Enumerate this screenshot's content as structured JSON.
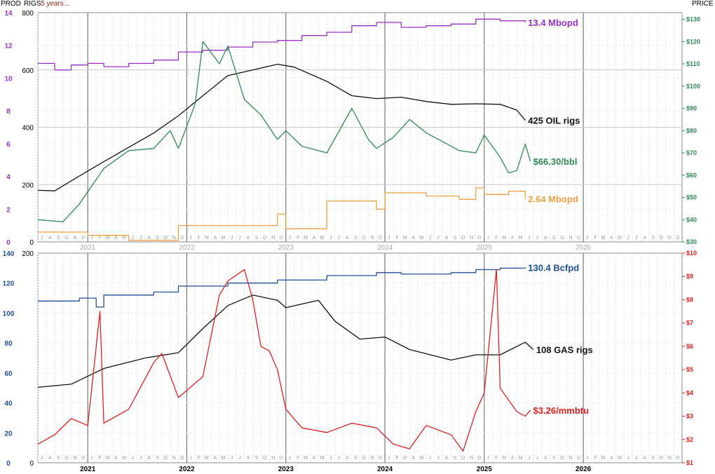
{
  "header": {
    "prod_label": "PROD",
    "rigs_label": "RIGS",
    "period_label": "5 years...",
    "price_label": "PRICE"
  },
  "colors": {
    "oil_prod": "#9b30c8",
    "oil_rigs": "#111111",
    "oil_price": "#2e8b57",
    "ngl_prod": "#f0a040",
    "gas_prod": "#1f4f9a",
    "gas_rigs": "#111111",
    "gas_price": "#e02020",
    "prod_axis_top": "#9b30c8",
    "prod_axis_bottom": "#1f4f9a",
    "price_axis_top": "#2e8b57",
    "price_axis_bottom": "#e02020"
  },
  "chart_data": [
    {
      "type": "line",
      "panel": "oil",
      "x_range": [
        "2020-07-01",
        "2026-12-31"
      ],
      "year_labels": [
        "2021",
        "2022",
        "2023",
        "2024",
        "2025",
        "2026"
      ],
      "month_letters": [
        "J",
        "F",
        "M",
        "A",
        "M",
        "J",
        "J",
        "A",
        "S",
        "O",
        "N",
        "D"
      ],
      "left_prod_axis": {
        "ticks": [
          "0",
          "2",
          "4",
          "6",
          "8",
          "10",
          "12",
          "14"
        ],
        "range": [
          0,
          14
        ],
        "unit": "Mbopd"
      },
      "left_rigs_axis": {
        "ticks": [
          "0",
          "200",
          "400",
          "600",
          "800"
        ],
        "range": [
          0,
          800
        ]
      },
      "right_price_axis": {
        "ticks": [
          "$30",
          "$40",
          "$50",
          "$60",
          "$70",
          "$80",
          "$90",
          "$100",
          "$110",
          "$120",
          "$130"
        ],
        "range": [
          30,
          133
        ]
      },
      "grid": true,
      "series": [
        {
          "name": "OIL production",
          "axis": "prod",
          "label": "13.4 Mbopd",
          "points": [
            [
              "2020-07-01",
              10.9
            ],
            [
              "2020-09-01",
              10.5
            ],
            [
              "2020-11-01",
              10.8
            ],
            [
              "2021-01-01",
              10.9
            ],
            [
              "2021-03-01",
              10.7
            ],
            [
              "2021-06-01",
              10.9
            ],
            [
              "2021-09-01",
              11.1
            ],
            [
              "2021-12-01",
              11.6
            ],
            [
              "2022-03-01",
              11.7
            ],
            [
              "2022-06-01",
              11.9
            ],
            [
              "2022-09-01",
              12.2
            ],
            [
              "2022-12-01",
              12.3
            ],
            [
              "2023-03-01",
              12.6
            ],
            [
              "2023-06-01",
              12.8
            ],
            [
              "2023-09-01",
              13.2
            ],
            [
              "2023-12-01",
              13.4
            ],
            [
              "2024-03-01",
              13.1
            ],
            [
              "2024-06-01",
              13.2
            ],
            [
              "2024-09-01",
              13.3
            ],
            [
              "2024-12-01",
              13.6
            ],
            [
              "2025-03-01",
              13.5
            ],
            [
              "2025-06-01",
              13.4
            ]
          ]
        },
        {
          "name": "OIL rigs",
          "axis": "rigs",
          "label": "425 OIL rigs",
          "points": [
            [
              "2020-07-01",
              180
            ],
            [
              "2020-09-01",
              178
            ],
            [
              "2020-12-01",
              230
            ],
            [
              "2021-03-01",
              280
            ],
            [
              "2021-06-01",
              330
            ],
            [
              "2021-09-01",
              380
            ],
            [
              "2021-12-01",
              440
            ],
            [
              "2022-03-01",
              510
            ],
            [
              "2022-06-01",
              580
            ],
            [
              "2022-09-01",
              600
            ],
            [
              "2022-12-01",
              620
            ],
            [
              "2023-02-01",
              610
            ],
            [
              "2023-06-01",
              560
            ],
            [
              "2023-09-01",
              510
            ],
            [
              "2023-12-01",
              500
            ],
            [
              "2024-03-01",
              505
            ],
            [
              "2024-06-01",
              490
            ],
            [
              "2024-09-01",
              480
            ],
            [
              "2024-12-01",
              482
            ],
            [
              "2025-03-01",
              480
            ],
            [
              "2025-05-01",
              460
            ],
            [
              "2025-06-01",
              425
            ]
          ]
        },
        {
          "name": "OIL price",
          "axis": "price",
          "label": "$66.30/bbl",
          "points": [
            [
              "2020-07-01",
              40
            ],
            [
              "2020-10-01",
              39
            ],
            [
              "2020-12-01",
              47
            ],
            [
              "2021-03-01",
              63
            ],
            [
              "2021-06-01",
              71
            ],
            [
              "2021-09-01",
              72
            ],
            [
              "2021-11-01",
              80
            ],
            [
              "2021-12-01",
              72
            ],
            [
              "2022-02-01",
              92
            ],
            [
              "2022-03-01",
              120
            ],
            [
              "2022-05-01",
              110
            ],
            [
              "2022-06-01",
              118
            ],
            [
              "2022-08-01",
              94
            ],
            [
              "2022-10-01",
              87
            ],
            [
              "2022-12-01",
              76
            ],
            [
              "2023-01-01",
              80
            ],
            [
              "2023-03-01",
              73
            ],
            [
              "2023-06-01",
              70
            ],
            [
              "2023-09-01",
              90
            ],
            [
              "2023-11-01",
              76
            ],
            [
              "2023-12-01",
              72
            ],
            [
              "2024-02-01",
              77
            ],
            [
              "2024-04-01",
              85
            ],
            [
              "2024-06-01",
              79
            ],
            [
              "2024-08-01",
              75
            ],
            [
              "2024-10-01",
              71
            ],
            [
              "2024-12-01",
              70
            ],
            [
              "2025-01-01",
              78
            ],
            [
              "2025-03-01",
              68
            ],
            [
              "2025-04-01",
              61
            ],
            [
              "2025-05-01",
              62
            ],
            [
              "2025-06-01",
              74
            ],
            [
              "2025-06-20",
              66.3
            ]
          ]
        },
        {
          "name": "NGL production",
          "axis": "prod",
          "label": "2.64 Mbopd",
          "points": [
            [
              "2020-07-01",
              0.6
            ],
            [
              "2021-01-01",
              0.4
            ],
            [
              "2021-06-01",
              0.1
            ],
            [
              "2021-12-01",
              1.0
            ],
            [
              "2022-06-01",
              1.0
            ],
            [
              "2022-12-01",
              1.7
            ],
            [
              "2023-01-01",
              0.8
            ],
            [
              "2023-06-01",
              2.5
            ],
            [
              "2023-12-01",
              2.0
            ],
            [
              "2024-01-01",
              3.0
            ],
            [
              "2024-06-01",
              2.8
            ],
            [
              "2024-10-01",
              2.6
            ],
            [
              "2024-12-01",
              3.3
            ],
            [
              "2025-01-01",
              2.9
            ],
            [
              "2025-04-01",
              3.1
            ],
            [
              "2025-06-01",
              2.64
            ]
          ]
        }
      ]
    },
    {
      "type": "line",
      "panel": "gas",
      "x_range": [
        "2020-07-01",
        "2026-12-31"
      ],
      "year_labels": [
        "2021",
        "2022",
        "2023",
        "2024",
        "2025",
        "2026"
      ],
      "month_letters": [
        "J",
        "F",
        "M",
        "A",
        "M",
        "J",
        "J",
        "A",
        "S",
        "O",
        "N",
        "D"
      ],
      "left_prod_axis": {
        "ticks": [
          "0",
          "20",
          "40",
          "60",
          "80",
          "100",
          "120",
          "140"
        ],
        "range": [
          0,
          140
        ],
        "unit": "Bcfpd"
      },
      "left_rigs_axis": {
        "ticks": [
          "0",
          "200"
        ],
        "range": [
          0,
          200
        ]
      },
      "right_price_axis": {
        "ticks": [
          "$1",
          "$2",
          "$3",
          "$4",
          "$5",
          "$6",
          "$7",
          "$8",
          "$9",
          "$10"
        ],
        "range": [
          1,
          10
        ]
      },
      "grid": true,
      "series": [
        {
          "name": "GAS production",
          "axis": "prod",
          "label": "130.4 Bcfpd",
          "points": [
            [
              "2020-07-01",
              108
            ],
            [
              "2020-12-01",
              110
            ],
            [
              "2021-02-01",
              104
            ],
            [
              "2021-03-01",
              112
            ],
            [
              "2021-09-01",
              114
            ],
            [
              "2021-12-01",
              118
            ],
            [
              "2022-06-01",
              120
            ],
            [
              "2022-12-01",
              122
            ],
            [
              "2023-06-01",
              125
            ],
            [
              "2023-12-01",
              127
            ],
            [
              "2024-03-01",
              126
            ],
            [
              "2024-09-01",
              127
            ],
            [
              "2024-12-01",
              129
            ],
            [
              "2025-03-01",
              130
            ],
            [
              "2025-06-01",
              130.4
            ]
          ]
        },
        {
          "name": "GAS rigs",
          "axis": "rigs",
          "label": "108 GAS rigs",
          "points": [
            [
              "2020-07-01",
              72
            ],
            [
              "2020-11-01",
              75
            ],
            [
              "2021-03-01",
              90
            ],
            [
              "2021-08-01",
              100
            ],
            [
              "2021-12-01",
              105
            ],
            [
              "2022-03-01",
              128
            ],
            [
              "2022-06-01",
              150
            ],
            [
              "2022-09-01",
              160
            ],
            [
              "2022-12-01",
              155
            ],
            [
              "2023-01-01",
              148
            ],
            [
              "2023-05-01",
              155
            ],
            [
              "2023-07-01",
              135
            ],
            [
              "2023-10-01",
              118
            ],
            [
              "2024-01-01",
              120
            ],
            [
              "2024-04-01",
              108
            ],
            [
              "2024-09-01",
              98
            ],
            [
              "2024-12-01",
              103
            ],
            [
              "2025-03-01",
              103
            ],
            [
              "2025-06-01",
              115
            ],
            [
              "2025-07-01",
              108
            ]
          ]
        },
        {
          "name": "GAS price",
          "axis": "price",
          "label": "$3.26/mmbtu",
          "points": [
            [
              "2020-07-01",
              1.8
            ],
            [
              "2020-09-01",
              2.2
            ],
            [
              "2020-11-01",
              2.9
            ],
            [
              "2021-01-01",
              2.6
            ],
            [
              "2021-02-15",
              7.5
            ],
            [
              "2021-03-01",
              2.7
            ],
            [
              "2021-06-01",
              3.3
            ],
            [
              "2021-09-01",
              5.3
            ],
            [
              "2021-10-01",
              5.7
            ],
            [
              "2021-12-01",
              3.8
            ],
            [
              "2022-03-01",
              4.7
            ],
            [
              "2022-05-01",
              8.2
            ],
            [
              "2022-06-01",
              8.8
            ],
            [
              "2022-08-01",
              9.3
            ],
            [
              "2022-09-01",
              8.0
            ],
            [
              "2022-10-01",
              6.0
            ],
            [
              "2022-11-01",
              5.8
            ],
            [
              "2022-12-01",
              5.0
            ],
            [
              "2023-01-01",
              3.3
            ],
            [
              "2023-03-01",
              2.5
            ],
            [
              "2023-06-01",
              2.3
            ],
            [
              "2023-09-01",
              2.7
            ],
            [
              "2023-12-01",
              2.5
            ],
            [
              "2024-02-01",
              1.8
            ],
            [
              "2024-04-01",
              1.6
            ],
            [
              "2024-06-01",
              2.6
            ],
            [
              "2024-09-01",
              2.2
            ],
            [
              "2024-10-15",
              1.5
            ],
            [
              "2024-12-01",
              3.2
            ],
            [
              "2025-01-01",
              4.0
            ],
            [
              "2025-02-15",
              9.3
            ],
            [
              "2025-03-01",
              4.2
            ],
            [
              "2025-05-01",
              3.2
            ],
            [
              "2025-06-01",
              3.0
            ],
            [
              "2025-06-20",
              3.26
            ]
          ]
        }
      ]
    }
  ]
}
